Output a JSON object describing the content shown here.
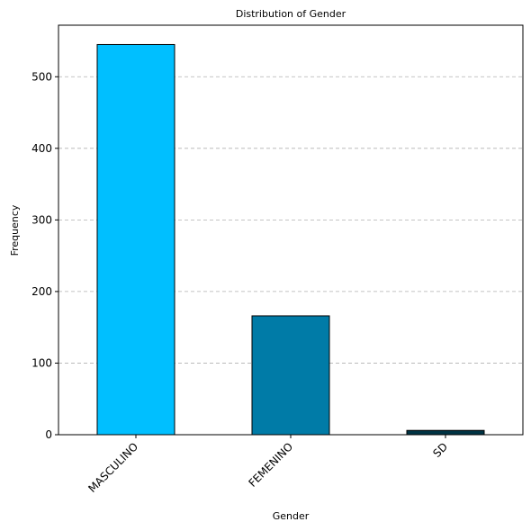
{
  "chart_data": {
    "type": "bar",
    "title": "Distribution of Gender",
    "xlabel": "Gender",
    "ylabel": "Frequency",
    "categories": [
      "MASCULINO",
      "FEMENINO",
      "SD"
    ],
    "values": [
      545,
      166,
      6
    ],
    "colors": [
      "#00BFFF",
      "#007BA7",
      "#003344"
    ],
    "ylim": [
      0,
      572
    ],
    "yticks": [
      0,
      100,
      200,
      300,
      400,
      500
    ],
    "grid": "y-dashed",
    "xtick_rotation": "45deg"
  }
}
